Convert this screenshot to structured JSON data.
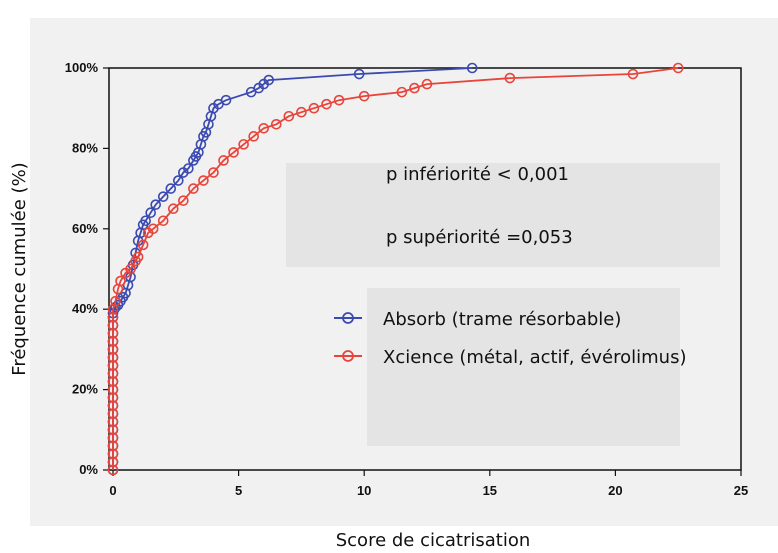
{
  "chart_data": {
    "type": "line",
    "title": "",
    "xlabel": "Score de cicatrisation",
    "ylabel": "Fréquence cumulée (%)",
    "xlim": [
      0,
      25
    ],
    "ylim": [
      0,
      100
    ],
    "x_ticks": [
      0,
      5,
      10,
      15,
      20,
      25
    ],
    "y_ticks": [
      0,
      20,
      40,
      60,
      80,
      100
    ],
    "y_tick_labels": [
      "0%",
      "20%",
      "40%",
      "60%",
      "80%",
      "100%"
    ],
    "annotations": [
      "p infériorité < 0,001",
      "p supériorité =0,053"
    ],
    "series": [
      {
        "name": "Absorb (trame résorbable)",
        "color": "#3b4ab0",
        "x": [
          0,
          0,
          0,
          0,
          0,
          0,
          0,
          0,
          0,
          0,
          0,
          0,
          0,
          0,
          0,
          0,
          0,
          0,
          0,
          0,
          0,
          0.05,
          0.1,
          0.2,
          0.3,
          0.4,
          0.5,
          0.6,
          0.7,
          0.8,
          0.9,
          1.0,
          1.1,
          1.2,
          1.3,
          1.5,
          1.7,
          2.0,
          2.3,
          2.6,
          2.8,
          3.0,
          3.2,
          3.3,
          3.4,
          3.5,
          3.6,
          3.7,
          3.8,
          3.9,
          4.0,
          4.2,
          4.5,
          5.5,
          5.8,
          6.0,
          6.2,
          9.8,
          14.3
        ],
        "y": [
          0,
          2,
          4,
          6,
          8,
          10,
          12,
          14,
          16,
          18,
          20,
          22,
          24,
          26,
          28,
          30,
          32,
          34,
          36,
          38,
          39,
          40,
          40.5,
          41,
          42,
          43,
          44,
          46,
          48,
          51,
          54,
          57,
          59,
          61,
          62,
          64,
          66,
          68,
          70,
          72,
          74,
          75,
          77,
          78,
          79,
          81,
          83,
          84,
          86,
          88,
          90,
          91,
          92,
          94,
          95,
          96,
          97,
          98.5,
          100
        ]
      },
      {
        "name": "Xcience (métal, actif, évérolimus)",
        "color": "#e8443a",
        "x": [
          0,
          0,
          0,
          0,
          0,
          0,
          0,
          0,
          0,
          0,
          0,
          0,
          0,
          0,
          0,
          0,
          0,
          0,
          0,
          0,
          0,
          0.1,
          0.2,
          0.3,
          0.5,
          0.7,
          0.9,
          1.0,
          1.2,
          1.4,
          1.6,
          2.0,
          2.4,
          2.8,
          3.2,
          3.6,
          4.0,
          4.4,
          4.8,
          5.2,
          5.6,
          6.0,
          6.5,
          7.0,
          7.5,
          8.0,
          8.5,
          9.0,
          10.0,
          11.5,
          12.0,
          12.5,
          15.8,
          20.7,
          22.5
        ],
        "y": [
          0,
          2,
          4,
          6,
          8,
          10,
          12,
          14,
          16,
          18,
          20,
          22,
          24,
          26,
          28,
          30,
          32,
          34,
          36,
          38,
          40,
          42,
          45,
          47,
          49,
          50,
          52,
          53,
          56,
          59,
          60,
          62,
          65,
          67,
          70,
          72,
          74,
          77,
          79,
          81,
          83,
          85,
          86,
          88,
          89,
          90,
          91,
          92,
          93,
          94,
          95,
          96,
          97.5,
          98.5,
          100
        ]
      }
    ]
  }
}
